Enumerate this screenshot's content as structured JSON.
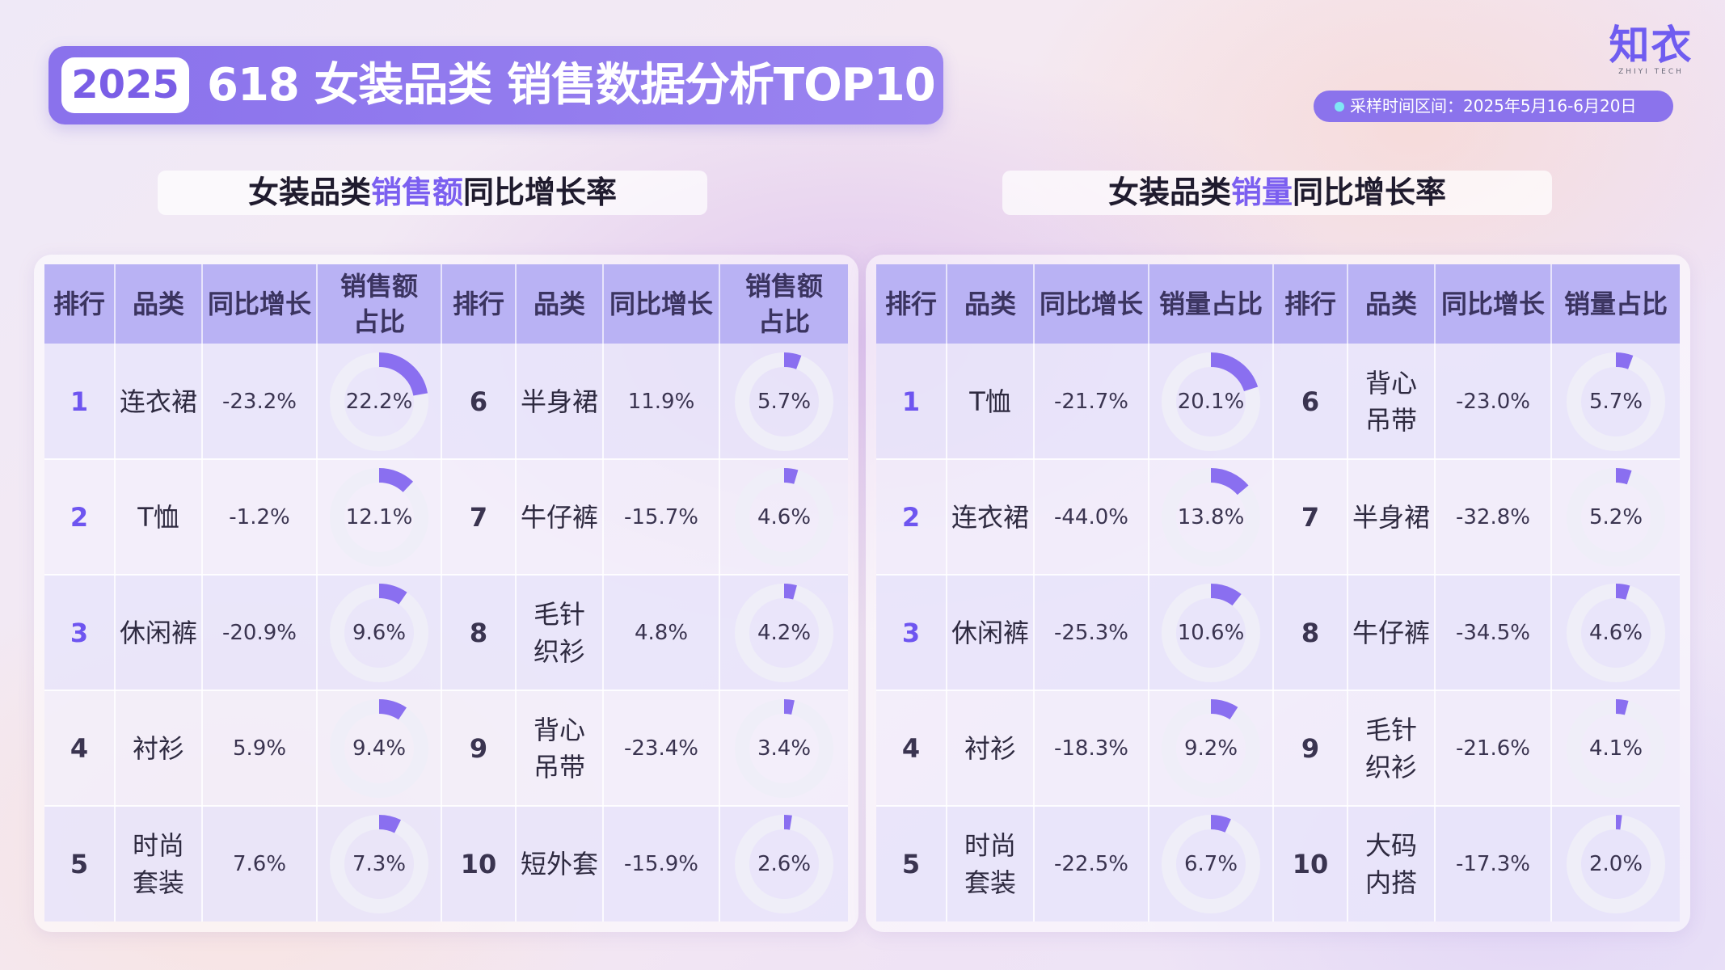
{
  "header": {
    "year": "2025",
    "title": "618 女装品类 销售数据分析TOP10",
    "period": "采样时间区间：2025年5月16-6月20日",
    "logo": "知衣",
    "logo_sub": "ZHIYI TECH"
  },
  "colors": {
    "accent": "#7b5ff0",
    "donut_fill": "#8a6ff0",
    "donut_track": "#efeef8",
    "header_bg": "#b9b2f4"
  },
  "chart_data": [
    {
      "type": "table",
      "title_parts": [
        "女装品类",
        "销售额",
        "同比增长率"
      ],
      "columns": [
        "排行",
        "品类",
        "同比增长",
        "销售额占比",
        "排行",
        "品类",
        "同比增长",
        "销售额占比"
      ],
      "column_labels": [
        "排行",
        "品类",
        "同比增长",
        "销售额\n占比",
        "排行",
        "品类",
        "同比增长",
        "销售额\n占比"
      ],
      "rows": [
        {
          "rank": "1",
          "category": "连衣裙",
          "yoy": "-23.2%",
          "share": 22.2
        },
        {
          "rank": "2",
          "category": "T恤",
          "yoy": "-1.2%",
          "share": 12.1
        },
        {
          "rank": "3",
          "category": "休闲裤",
          "yoy": "-20.9%",
          "share": 9.6
        },
        {
          "rank": "4",
          "category": "衬衫",
          "yoy": "5.9%",
          "share": 9.4
        },
        {
          "rank": "5",
          "category": "时尚\n套装",
          "yoy": "7.6%",
          "share": 7.3
        },
        {
          "rank": "6",
          "category": "半身裙",
          "yoy": "11.9%",
          "share": 5.7
        },
        {
          "rank": "7",
          "category": "牛仔裤",
          "yoy": "-15.7%",
          "share": 4.6
        },
        {
          "rank": "8",
          "category": "毛针\n织衫",
          "yoy": "4.8%",
          "share": 4.2
        },
        {
          "rank": "9",
          "category": "背心\n吊带",
          "yoy": "-23.4%",
          "share": 3.4
        },
        {
          "rank": "10",
          "category": "短外套",
          "yoy": "-15.9%",
          "share": 2.6
        }
      ]
    },
    {
      "type": "table",
      "title_parts": [
        "女装品类",
        "销量",
        "同比增长率"
      ],
      "columns": [
        "排行",
        "品类",
        "同比增长",
        "销量占比",
        "排行",
        "品类",
        "同比增长",
        "销量占比"
      ],
      "column_labels": [
        "排行",
        "品类",
        "同比增长",
        "销量占比",
        "排行",
        "品类",
        "同比增长",
        "销量占比"
      ],
      "rows": [
        {
          "rank": "1",
          "category": "T恤",
          "yoy": "-21.7%",
          "share": 20.1
        },
        {
          "rank": "2",
          "category": "连衣裙",
          "yoy": "-44.0%",
          "share": 13.8
        },
        {
          "rank": "3",
          "category": "休闲裤",
          "yoy": "-25.3%",
          "share": 10.6
        },
        {
          "rank": "4",
          "category": "衬衫",
          "yoy": "-18.3%",
          "share": 9.2
        },
        {
          "rank": "5",
          "category": "时尚\n套装",
          "yoy": "-22.5%",
          "share": 6.7
        },
        {
          "rank": "6",
          "category": "背心\n吊带",
          "yoy": "-23.0%",
          "share": 5.7
        },
        {
          "rank": "7",
          "category": "半身裙",
          "yoy": "-32.8%",
          "share": 5.2
        },
        {
          "rank": "8",
          "category": "牛仔裤",
          "yoy": "-34.5%",
          "share": 4.6
        },
        {
          "rank": "9",
          "category": "毛针\n织衫",
          "yoy": "-21.6%",
          "share": 4.1
        },
        {
          "rank": "10",
          "category": "大码\n内搭",
          "yoy": "-17.3%",
          "share": 2.0
        }
      ]
    }
  ]
}
